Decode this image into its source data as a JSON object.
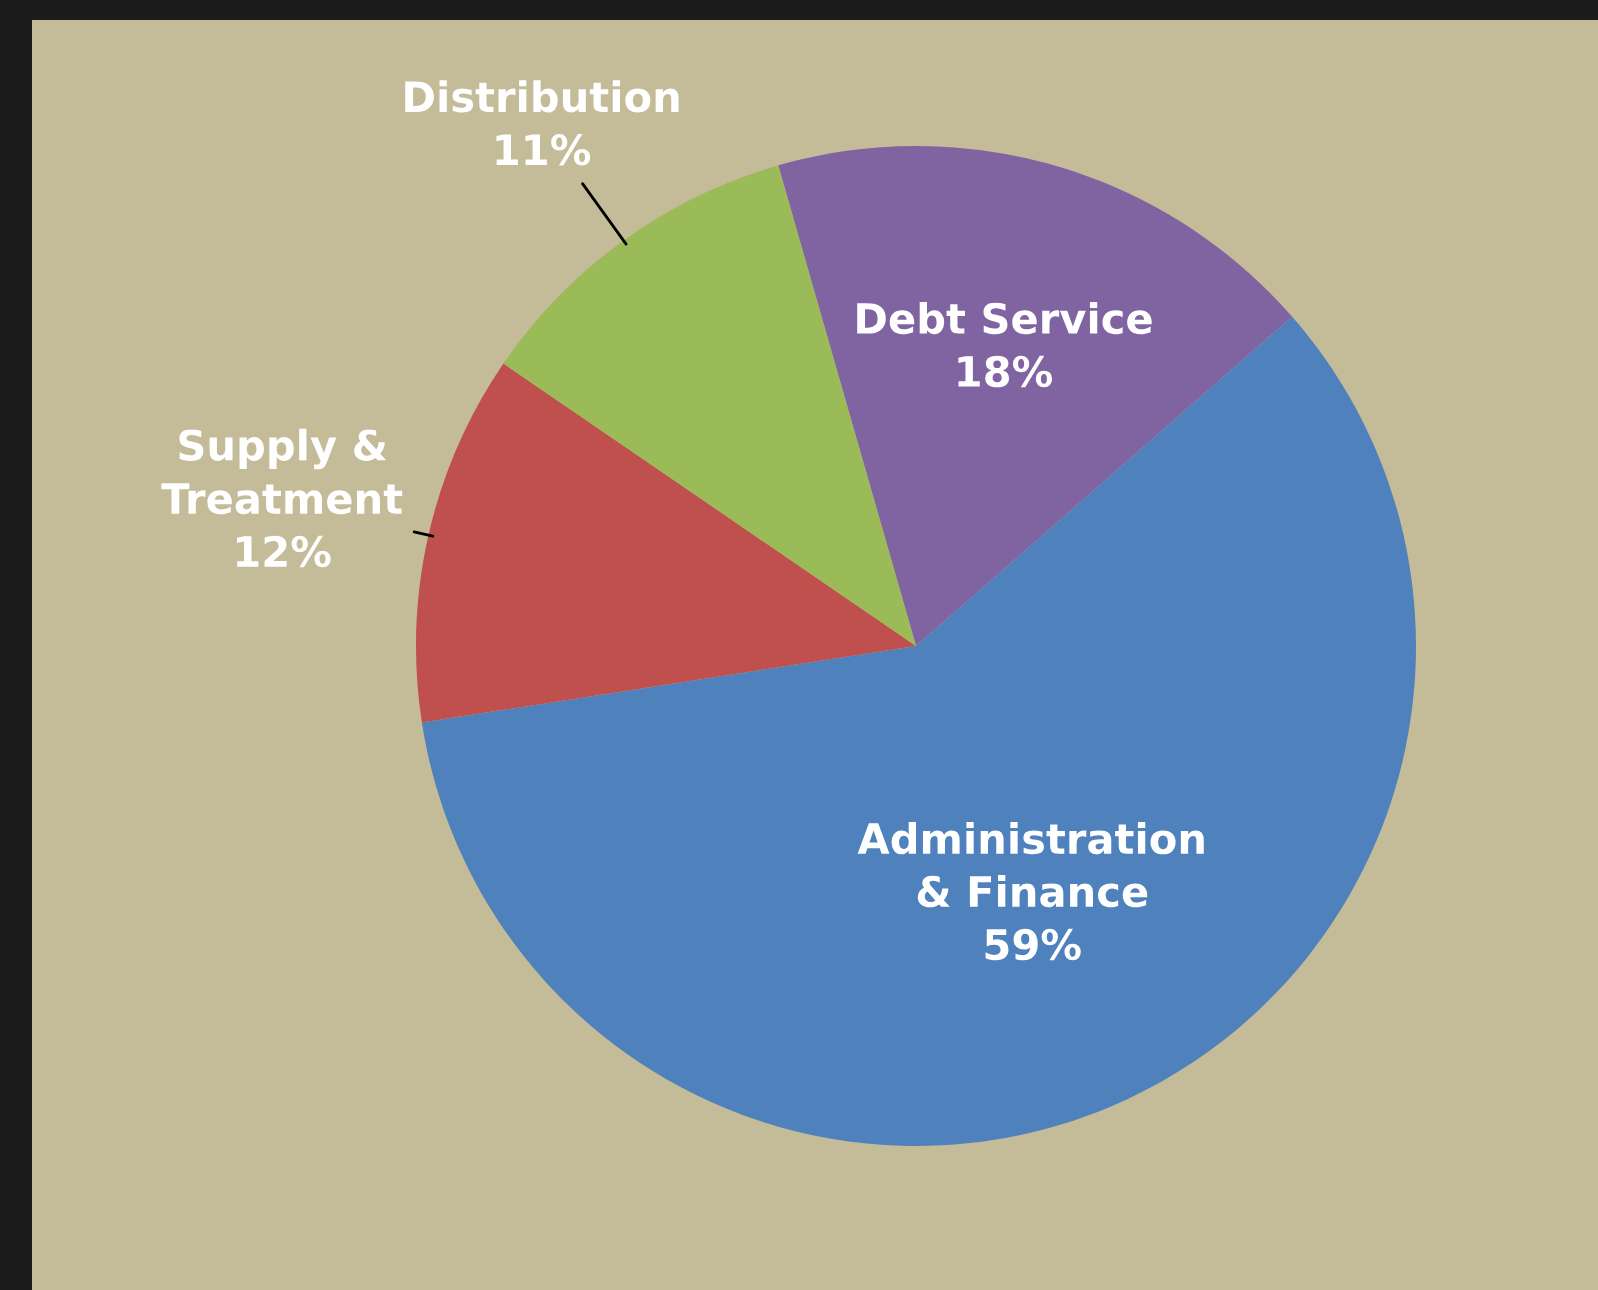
{
  "chart_data": {
    "type": "pie",
    "categories": [
      "Debt Service",
      "Administration\n& Finance",
      "Supply &\nTreatment",
      "Distribution"
    ],
    "values": [
      18,
      59,
      12,
      11
    ],
    "value_labels": [
      "18%",
      "59%",
      "12%",
      "11%"
    ],
    "colors": [
      "#8064a2",
      "#4f81bd",
      "#c0504d",
      "#9bbb59"
    ],
    "legend": false
  }
}
